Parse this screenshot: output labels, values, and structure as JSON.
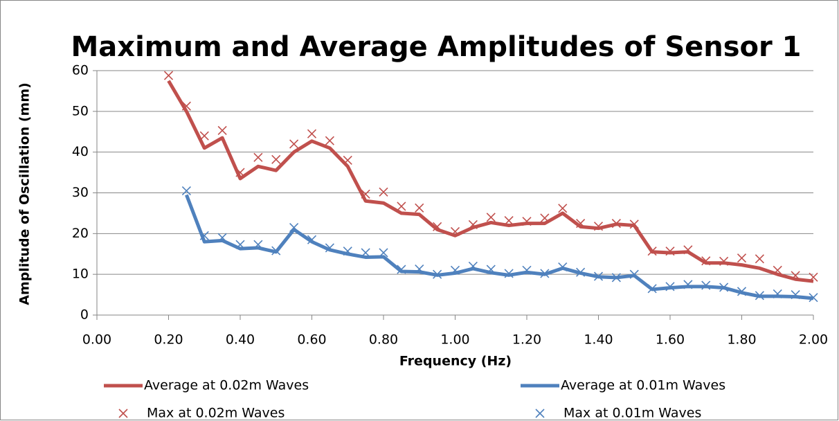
{
  "chart_data": {
    "type": "line",
    "title": "Maximum and Average Amplitudes of Sensor 1",
    "x_label": "Frequency (Hz)",
    "y_label": "Amplitude of Oscillation  (mm)",
    "xlim": [
      0,
      2
    ],
    "ylim": [
      0,
      60
    ],
    "xticks": [
      {
        "value": 0,
        "label": "0.00"
      },
      {
        "value": 0.2,
        "label": "0.20"
      },
      {
        "value": 0.4,
        "label": "0.40"
      },
      {
        "value": 0.6,
        "label": "0.60"
      },
      {
        "value": 0.8,
        "label": "0.80"
      },
      {
        "value": 1,
        "label": "1.00"
      },
      {
        "value": 1.2,
        "label": "1.20"
      },
      {
        "value": 1.4,
        "label": "1.40"
      },
      {
        "value": 1.6,
        "label": "1.60"
      },
      {
        "value": 1.8,
        "label": "1.80"
      },
      {
        "value": 2,
        "label": "2.00"
      }
    ],
    "yticks": [
      0,
      10,
      20,
      30,
      40,
      50,
      60
    ],
    "grid": true,
    "legend": "bottom",
    "series": [
      {
        "name": "Average at 0.02m Waves",
        "color": "#c0504d",
        "mode": "line",
        "x": [
          0.2,
          0.25,
          0.3,
          0.35,
          0.4,
          0.45,
          0.5,
          0.55,
          0.6,
          0.65,
          0.7,
          0.75,
          0.8,
          0.85,
          0.9,
          0.95,
          1,
          1.05,
          1.1,
          1.15,
          1.2,
          1.25,
          1.3,
          1.35,
          1.4,
          1.45,
          1.5,
          1.55,
          1.6,
          1.65,
          1.7,
          1.75,
          1.8,
          1.85,
          1.9,
          1.95,
          2
        ],
        "values": [
          57.5,
          50,
          41,
          43.5,
          33.5,
          36.5,
          35.5,
          40,
          42.7,
          41,
          36.5,
          28,
          27.5,
          25,
          24.7,
          21,
          19.5,
          21.5,
          22.7,
          22,
          22.5,
          22.5,
          25,
          21.7,
          21.3,
          22.3,
          22,
          15.5,
          15.3,
          15.5,
          12.8,
          12.8,
          12.3,
          11.5,
          10,
          8.8,
          8.3
        ]
      },
      {
        "name": "Average at 0.01m Waves",
        "color": "#4f81bd",
        "mode": "line",
        "x": [
          0.25,
          0.3,
          0.35,
          0.4,
          0.45,
          0.5,
          0.55,
          0.6,
          0.65,
          0.7,
          0.75,
          0.8,
          0.85,
          0.9,
          0.95,
          1,
          1.05,
          1.1,
          1.15,
          1.2,
          1.25,
          1.3,
          1.35,
          1.4,
          1.45,
          1.5,
          1.55,
          1.6,
          1.65,
          1.7,
          1.75,
          1.8,
          1.85,
          1.9,
          1.95,
          2
        ],
        "values": [
          29.5,
          18,
          18.3,
          16.3,
          16.5,
          15.5,
          21,
          18,
          16,
          15,
          14.2,
          14.3,
          10.7,
          10.6,
          9.8,
          10.3,
          11.4,
          10.4,
          9.8,
          10.5,
          10,
          11.5,
          10.3,
          9.4,
          9.2,
          9.7,
          6.3,
          6.7,
          7,
          7,
          6.7,
          5.5,
          4.6,
          4.6,
          4.5,
          4.1
        ]
      },
      {
        "name": "Max at 0.02m Waves",
        "color": "#c0504d",
        "mode": "markers",
        "x": [
          0.2,
          0.25,
          0.3,
          0.35,
          0.4,
          0.45,
          0.5,
          0.55,
          0.6,
          0.65,
          0.7,
          0.75,
          0.8,
          0.85,
          0.9,
          0.95,
          1,
          1.05,
          1.1,
          1.15,
          1.2,
          1.25,
          1.3,
          1.35,
          1.4,
          1.45,
          1.5,
          1.55,
          1.6,
          1.65,
          1.7,
          1.75,
          1.8,
          1.85,
          1.9,
          1.95,
          2
        ],
        "values": [
          58.8,
          51.3,
          44,
          45.3,
          35,
          38.7,
          38.2,
          42,
          44.5,
          42.8,
          38,
          29.7,
          30.2,
          26.7,
          26.3,
          21.7,
          20.5,
          22.2,
          24,
          23.2,
          23,
          23.8,
          26.2,
          22.5,
          21.8,
          22.5,
          22.3,
          15.7,
          15.7,
          16,
          13.3,
          13.2,
          14,
          13.8,
          11,
          9.7,
          9.3
        ]
      },
      {
        "name": "Max at 0.01m Waves",
        "color": "#4f81bd",
        "mode": "markers",
        "x": [
          0.25,
          0.3,
          0.35,
          0.4,
          0.45,
          0.5,
          0.55,
          0.6,
          0.65,
          0.7,
          0.75,
          0.8,
          0.85,
          0.9,
          0.95,
          1,
          1.05,
          1.1,
          1.15,
          1.2,
          1.25,
          1.3,
          1.35,
          1.4,
          1.45,
          1.5,
          1.55,
          1.6,
          1.65,
          1.7,
          1.75,
          1.8,
          1.85,
          1.9,
          1.95,
          2
        ],
        "values": [
          30.5,
          19.5,
          19,
          17.3,
          17.3,
          15.8,
          21.5,
          18.5,
          16.5,
          15.7,
          15.3,
          15.3,
          11.2,
          11.3,
          10,
          11,
          12,
          11.2,
          10.2,
          11,
          10.2,
          11.8,
          10.5,
          9.5,
          9.2,
          10,
          6.5,
          7,
          7.5,
          7.3,
          6.8,
          5.8,
          4.8,
          5.2,
          5,
          4.3
        ]
      }
    ]
  }
}
